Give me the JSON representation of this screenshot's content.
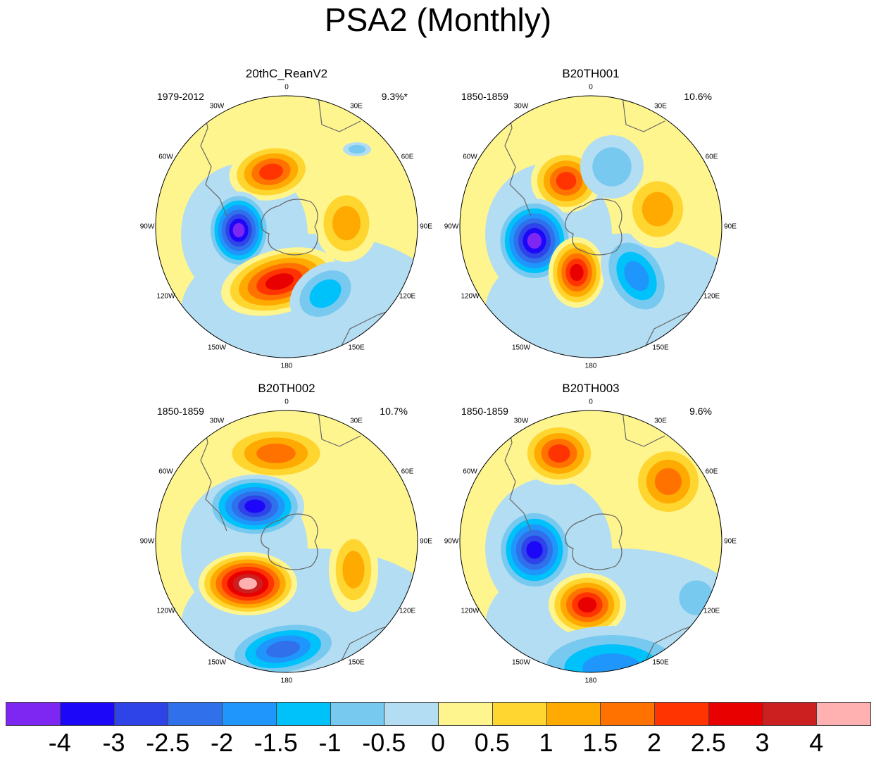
{
  "title": "PSA2 (Monthly)",
  "panels": [
    {
      "name": "20thC_ReanV2",
      "period": "1979-2012",
      "percent": "9.3%*"
    },
    {
      "name": "B20TH001",
      "period": "1850-1859",
      "percent": "10.6%"
    },
    {
      "name": "B20TH002",
      "period": "1850-1859",
      "percent": "10.7%"
    },
    {
      "name": "B20TH003",
      "period": "1850-1859",
      "percent": "9.6%"
    }
  ],
  "longitude_labels": [
    "0",
    "30E",
    "60E",
    "90E",
    "120E",
    "150E",
    "180",
    "150W",
    "120W",
    "90W",
    "60W",
    "30W"
  ],
  "colorbar": {
    "colors": [
      "#7f27f2",
      "#1d07f8",
      "#2e44e9",
      "#3070ea",
      "#1e96fb",
      "#00c2fb",
      "#77c9f0",
      "#b3ddf2",
      "#fff58f",
      "#ffd530",
      "#ffaa00",
      "#ff7200",
      "#ff3400",
      "#e80000",
      "#cc2020",
      "#ffb1b1"
    ],
    "labels": [
      "-4",
      "-3",
      "-2.5",
      "-2",
      "-1.5",
      "-1",
      "-0.5",
      "0",
      "0.5",
      "1",
      "1.5",
      "2",
      "2.5",
      "3",
      "4"
    ]
  }
}
